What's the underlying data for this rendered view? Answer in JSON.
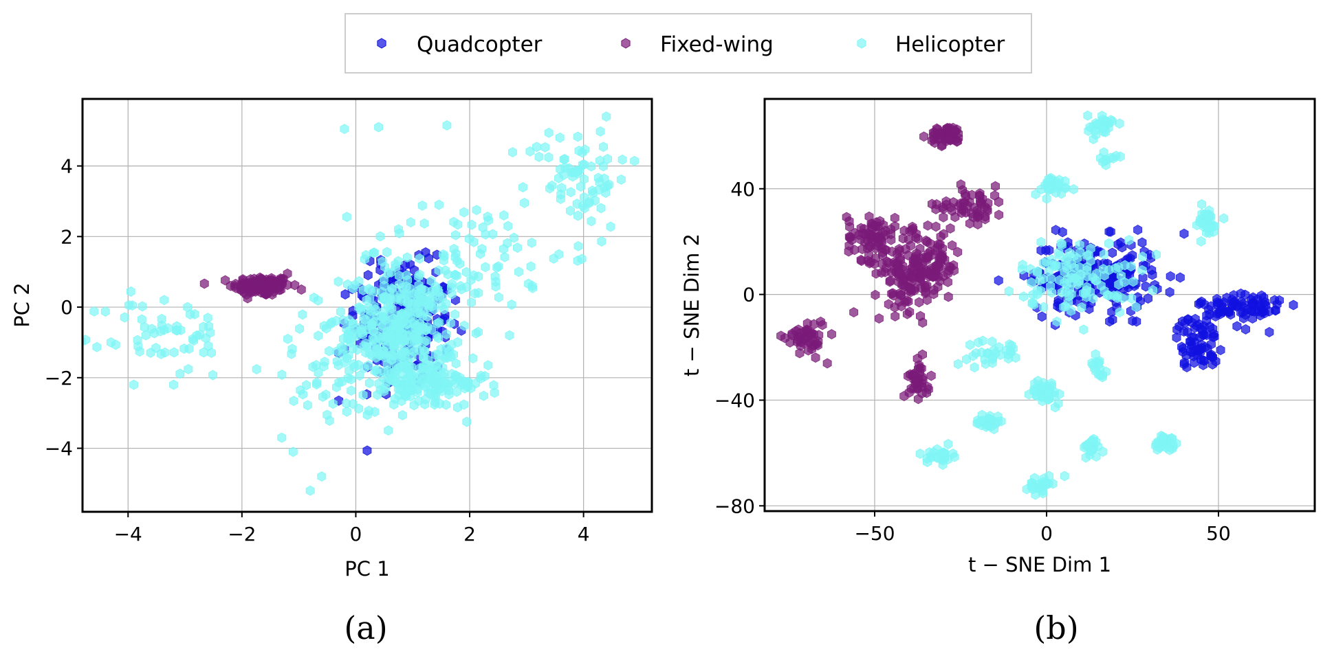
{
  "legend": [
    {
      "label": "Quadcopter",
      "color": "#1010e0"
    },
    {
      "label": "Fixed-wing",
      "color": "#7a1a78"
    },
    {
      "label": "Helicopter",
      "color": "#7ff5f5"
    }
  ],
  "chart_data": [
    {
      "type": "scatter",
      "panel": "(a)",
      "xlabel": "PC 1",
      "ylabel": "PC 2",
      "xlim": [
        -4.8,
        5.2
      ],
      "ylim": [
        -5.8,
        5.9
      ],
      "xticks": [
        -4,
        -2,
        0,
        2,
        4
      ],
      "yticks": [
        -4,
        -2,
        0,
        2,
        4
      ],
      "xtick_labels": [
        "−4",
        "−2",
        "0",
        "2",
        "4"
      ],
      "ytick_labels": [
        "−4",
        "−2",
        "0",
        "2",
        "4"
      ],
      "grid": true,
      "series": [
        {
          "name": "Fixed-wing",
          "clusters": [
            {
              "cx": -1.65,
              "cy": 0.6,
              "sx": 0.25,
              "sy": 0.14,
              "n": 130
            }
          ],
          "points": [
            [
              -1.9,
              0.25
            ],
            [
              -1.2,
              0.95
            ],
            [
              -2.2,
              0.6
            ]
          ]
        },
        {
          "name": "Quadcopter",
          "clusters": [
            {
              "cx": 0.85,
              "cy": -0.5,
              "sx": 0.42,
              "sy": 0.85,
              "n": 180
            },
            {
              "cx": 0.7,
              "cy": 0.7,
              "sx": 0.3,
              "sy": 0.35,
              "n": 40
            }
          ],
          "points": [
            [
              -0.3,
              -1.3
            ],
            [
              -0.3,
              -2.65
            ],
            [
              1.75,
              0.2
            ],
            [
              1.6,
              -1.2
            ]
          ]
        },
        {
          "name": "Helicopter",
          "clusters": [
            {
              "cx": 0.8,
              "cy": -0.6,
              "sx": 0.45,
              "sy": 0.75,
              "n": 320
            },
            {
              "cx": 1.2,
              "cy": -2.2,
              "sx": 0.55,
              "sy": 0.35,
              "n": 140
            },
            {
              "cx": 3.9,
              "cy": 3.7,
              "sx": 0.45,
              "sy": 0.7,
              "n": 70
            },
            {
              "cx": 1.9,
              "cy": 1.5,
              "sx": 0.9,
              "sy": 0.8,
              "n": 90
            },
            {
              "cx": -3.3,
              "cy": -0.8,
              "sx": 0.55,
              "sy": 0.6,
              "n": 55
            },
            {
              "cx": -0.4,
              "cy": -1.6,
              "sx": 0.55,
              "sy": 0.9,
              "n": 60
            }
          ],
          "points": [
            [
              -0.2,
              5.05
            ],
            [
              0.4,
              5.1
            ],
            [
              1.6,
              5.15
            ],
            [
              4.4,
              5.4
            ],
            [
              -0.8,
              -5.2
            ],
            [
              -0.6,
              -4.8
            ],
            [
              -1.1,
              -4.1
            ],
            [
              -1.3,
              -3.7
            ],
            [
              3.1,
              0.6
            ],
            [
              2.7,
              -0.8
            ],
            [
              -4.3,
              -1.0
            ],
            [
              -3.9,
              -2.2
            ],
            [
              -3.2,
              -2.2
            ]
          ]
        }
      ]
    },
    {
      "type": "scatter",
      "panel": "(b)",
      "xlabel": "t − SNE Dim 1",
      "ylabel": "t − SNE Dim 2",
      "xlim": [
        -82,
        78
      ],
      "ylim": [
        -82,
        74
      ],
      "xticks": [
        -50,
        0,
        50
      ],
      "yticks": [
        -80,
        -40,
        0,
        40
      ],
      "xtick_labels": [
        "−50",
        "0",
        "50"
      ],
      "ytick_labels": [
        "−80",
        "−40",
        "0",
        "40"
      ],
      "grid": true,
      "series": [
        {
          "name": "Fixed-wing",
          "clusters": [
            {
              "cx": -29,
              "cy": 60,
              "sx": 2.5,
              "sy": 1.8,
              "n": 45
            },
            {
              "cx": -22,
              "cy": 34,
              "sx": 5,
              "sy": 3.5,
              "n": 55
            },
            {
              "cx": -51,
              "cy": 22,
              "sx": 3.5,
              "sy": 4.5,
              "n": 70
            },
            {
              "cx": -40,
              "cy": 8,
              "sx": 5,
              "sy": 7,
              "n": 130
            },
            {
              "cx": -33,
              "cy": 12,
              "sx": 4,
              "sy": 6,
              "n": 60
            },
            {
              "cx": -70,
              "cy": -16,
              "sx": 3,
              "sy": 3.5,
              "n": 45
            },
            {
              "cx": -37,
              "cy": -32,
              "sx": 1.5,
              "sy": 3.5,
              "n": 35
            }
          ],
          "points": [
            [
              -28,
              25
            ],
            [
              -46,
              12
            ]
          ]
        },
        {
          "name": "Quadcopter",
          "clusters": [
            {
              "cx": 13,
              "cy": 7,
              "sx": 9,
              "sy": 7,
              "n": 220
            },
            {
              "cx": 44,
              "cy": -18,
              "sx": 3,
              "sy": 5,
              "n": 70
            },
            {
              "cx": 57,
              "cy": -5,
              "sx": 6,
              "sy": 3.5,
              "n": 80
            }
          ],
          "points": [
            [
              -2,
              8
            ],
            [
              30,
              15
            ],
            [
              40,
              23
            ],
            [
              25,
              -10
            ]
          ]
        },
        {
          "name": "Helicopter",
          "clusters": [
            {
              "cx": 16,
              "cy": 64,
              "sx": 2,
              "sy": 2,
              "n": 30
            },
            {
              "cx": 18,
              "cy": 51,
              "sx": 1.2,
              "sy": 1,
              "n": 10
            },
            {
              "cx": 10,
              "cy": 7,
              "sx": 9,
              "sy": 7,
              "n": 120
            },
            {
              "cx": 2,
              "cy": 41,
              "sx": 3,
              "sy": 1.8,
              "n": 30
            },
            {
              "cx": 46,
              "cy": 27,
              "sx": 2,
              "sy": 3,
              "n": 35
            },
            {
              "cx": -15,
              "cy": -22,
              "sx": 4,
              "sy": 2.5,
              "n": 30
            },
            {
              "cx": 15,
              "cy": -27,
              "sx": 1.2,
              "sy": 2,
              "n": 15
            },
            {
              "cx": 0,
              "cy": -37,
              "sx": 2.2,
              "sy": 2.2,
              "n": 35
            },
            {
              "cx": -17,
              "cy": -48,
              "sx": 1.8,
              "sy": 1.5,
              "n": 30
            },
            {
              "cx": 13,
              "cy": -58,
              "sx": 1.3,
              "sy": 1.8,
              "n": 25
            },
            {
              "cx": 35,
              "cy": -56,
              "sx": 1.8,
              "sy": 1.8,
              "n": 30
            },
            {
              "cx": -31,
              "cy": -61,
              "sx": 1.8,
              "sy": 1.5,
              "n": 25
            },
            {
              "cx": -2,
              "cy": -72,
              "sx": 2,
              "sy": 1.5,
              "n": 25
            }
          ],
          "points": []
        }
      ]
    }
  ]
}
